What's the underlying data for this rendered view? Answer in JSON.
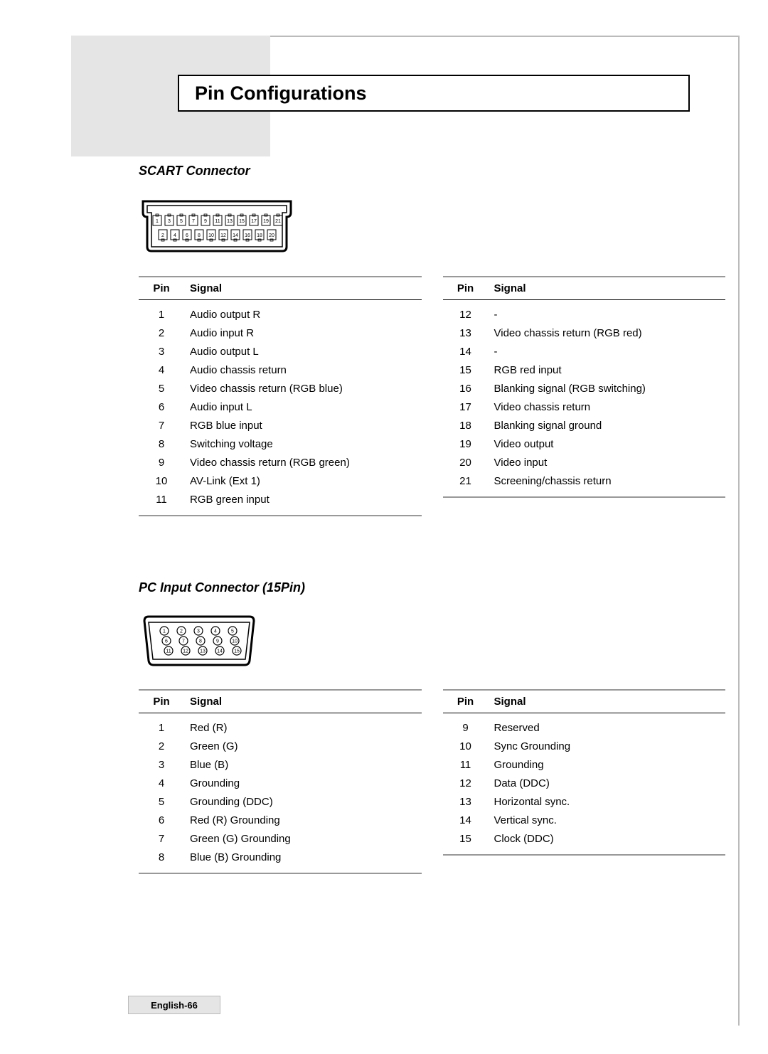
{
  "page_title": "Pin Configurations",
  "page_label": "English-66",
  "scart": {
    "title": "SCART Connector",
    "diagram": {
      "top_row": [
        "1",
        "3",
        "5",
        "7",
        "9",
        "11",
        "13",
        "15",
        "17",
        "19",
        "21"
      ],
      "bottom_row": [
        "2",
        "4",
        "6",
        "8",
        "10",
        "12",
        "14",
        "16",
        "18",
        "20"
      ],
      "stroke": "#000000",
      "fill": "#ffffff"
    },
    "headers": {
      "pin": "Pin",
      "signal": "Signal"
    },
    "left": [
      {
        "pin": "1",
        "signal": "Audio output R"
      },
      {
        "pin": "2",
        "signal": "Audio input R"
      },
      {
        "pin": "3",
        "signal": "Audio output L"
      },
      {
        "pin": "4",
        "signal": "Audio chassis return"
      },
      {
        "pin": "5",
        "signal": "Video chassis return (RGB blue)"
      },
      {
        "pin": "6",
        "signal": "Audio input L"
      },
      {
        "pin": "7",
        "signal": "RGB blue input"
      },
      {
        "pin": "8",
        "signal": "Switching voltage"
      },
      {
        "pin": "9",
        "signal": "Video chassis return (RGB green)"
      },
      {
        "pin": "10",
        "signal": "AV-Link (Ext 1)"
      },
      {
        "pin": "11",
        "signal": "RGB green input"
      }
    ],
    "right": [
      {
        "pin": "12",
        "signal": "-"
      },
      {
        "pin": "13",
        "signal": "Video chassis return (RGB red)"
      },
      {
        "pin": "14",
        "signal": "-"
      },
      {
        "pin": "15",
        "signal": "RGB red input"
      },
      {
        "pin": "16",
        "signal": "Blanking signal (RGB switching)"
      },
      {
        "pin": "17",
        "signal": "Video chassis return"
      },
      {
        "pin": "18",
        "signal": "Blanking signal ground"
      },
      {
        "pin": "19",
        "signal": "Video output"
      },
      {
        "pin": "20",
        "signal": "Video input"
      },
      {
        "pin": "21",
        "signal": "Screening/chassis return"
      }
    ]
  },
  "pc": {
    "title": "PC Input Connector (15Pin)",
    "diagram": {
      "row1": [
        "1",
        "2",
        "3",
        "4",
        "5"
      ],
      "row2": [
        "6",
        "7",
        "8",
        "9",
        "10"
      ],
      "row3": [
        "11",
        "12",
        "13",
        "14",
        "15"
      ],
      "stroke": "#000000",
      "fill": "#ffffff"
    },
    "headers": {
      "pin": "Pin",
      "signal": "Signal"
    },
    "left": [
      {
        "pin": "1",
        "signal": "Red (R)"
      },
      {
        "pin": "2",
        "signal": "Green (G)"
      },
      {
        "pin": "3",
        "signal": "Blue (B)"
      },
      {
        "pin": "4",
        "signal": "Grounding"
      },
      {
        "pin": "5",
        "signal": "Grounding (DDC)"
      },
      {
        "pin": "6",
        "signal": "Red (R) Grounding"
      },
      {
        "pin": "7",
        "signal": "Green (G) Grounding"
      },
      {
        "pin": "8",
        "signal": "Blue (B) Grounding"
      }
    ],
    "right": [
      {
        "pin": "9",
        "signal": "Reserved"
      },
      {
        "pin": "10",
        "signal": "Sync Grounding"
      },
      {
        "pin": "11",
        "signal": "Grounding"
      },
      {
        "pin": "12",
        "signal": "Data (DDC)"
      },
      {
        "pin": "13",
        "signal": "Horizontal sync."
      },
      {
        "pin": "14",
        "signal": "Vertical sync."
      },
      {
        "pin": "15",
        "signal": "Clock (DDC)"
      }
    ]
  }
}
